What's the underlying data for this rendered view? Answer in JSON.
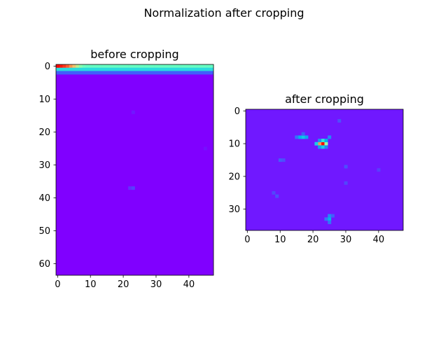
{
  "figure": {
    "suptitle": "Normalization after cropping"
  },
  "chart_data": [
    {
      "type": "heatmap",
      "title": "before cropping",
      "xlabel": "",
      "ylabel": "",
      "colormap": "rainbow",
      "shape": [
        64,
        48
      ],
      "xlim": [
        -0.5,
        47.5
      ],
      "ylim": [
        63.5,
        -0.5
      ],
      "xticks": [
        0,
        10,
        20,
        30,
        40
      ],
      "yticks": [
        0,
        10,
        20,
        30,
        40,
        50,
        60
      ],
      "background_value": 0.0,
      "rows": [
        {
          "row": 0,
          "values": [
            1.0,
            0.97,
            0.93,
            0.88,
            0.8,
            0.72,
            0.62,
            0.52,
            0.47,
            0.45,
            0.45,
            0.45,
            0.45,
            0.45,
            0.45,
            0.45,
            0.45,
            0.45,
            0.45,
            0.45,
            0.45,
            0.45,
            0.45,
            0.45,
            0.45,
            0.45,
            0.45,
            0.45,
            0.45,
            0.45,
            0.45,
            0.45,
            0.45,
            0.45,
            0.45,
            0.45,
            0.45,
            0.45,
            0.45,
            0.45,
            0.45,
            0.45,
            0.45,
            0.45,
            0.45,
            0.45,
            0.45,
            0.45
          ]
        },
        {
          "row": 1,
          "fill": 0.33
        },
        {
          "row": 2,
          "fill": 0.12
        }
      ],
      "spots": [
        {
          "row": 14,
          "col": 23,
          "value": 0.03
        },
        {
          "row": 37,
          "col": 22,
          "value": 0.06
        },
        {
          "row": 37,
          "col": 23,
          "value": 0.08
        },
        {
          "row": 25,
          "col": 45,
          "value": 0.02
        }
      ]
    },
    {
      "type": "heatmap",
      "title": "after cropping",
      "xlabel": "",
      "ylabel": "",
      "colormap": "rainbow",
      "shape": [
        37,
        48
      ],
      "xlim": [
        -0.5,
        47.5
      ],
      "ylim": [
        36.5,
        -0.5
      ],
      "xticks": [
        0,
        10,
        20,
        30,
        40
      ],
      "yticks": [
        0,
        10,
        20,
        30
      ],
      "background_value": 0.03,
      "spots": [
        {
          "row": 10,
          "col": 23,
          "value": 1.0
        },
        {
          "row": 10,
          "col": 22,
          "value": 0.8
        },
        {
          "row": 10,
          "col": 24,
          "value": 0.55
        },
        {
          "row": 9,
          "col": 23,
          "value": 0.35
        },
        {
          "row": 11,
          "col": 23,
          "value": 0.3
        },
        {
          "row": 9,
          "col": 24,
          "value": 0.25
        },
        {
          "row": 10,
          "col": 21,
          "value": 0.3
        },
        {
          "row": 11,
          "col": 22,
          "value": 0.22
        },
        {
          "row": 8,
          "col": 25,
          "value": 0.18
        },
        {
          "row": 9,
          "col": 22,
          "value": 0.2
        },
        {
          "row": 11,
          "col": 24,
          "value": 0.18
        },
        {
          "row": 8,
          "col": 16,
          "value": 0.25
        },
        {
          "row": 8,
          "col": 17,
          "value": 0.28
        },
        {
          "row": 8,
          "col": 18,
          "value": 0.22
        },
        {
          "row": 8,
          "col": 15,
          "value": 0.15
        },
        {
          "row": 7,
          "col": 17,
          "value": 0.12
        },
        {
          "row": 33,
          "col": 25,
          "value": 0.25
        },
        {
          "row": 32,
          "col": 25,
          "value": 0.18
        },
        {
          "row": 33,
          "col": 24,
          "value": 0.15
        },
        {
          "row": 34,
          "col": 25,
          "value": 0.15
        },
        {
          "row": 32,
          "col": 26,
          "value": 0.12
        },
        {
          "row": 15,
          "col": 10,
          "value": 0.12
        },
        {
          "row": 15,
          "col": 11,
          "value": 0.1
        },
        {
          "row": 26,
          "col": 9,
          "value": 0.1
        },
        {
          "row": 25,
          "col": 8,
          "value": 0.09
        },
        {
          "row": 17,
          "col": 30,
          "value": 0.1
        },
        {
          "row": 3,
          "col": 28,
          "value": 0.1
        },
        {
          "row": 22,
          "col": 30,
          "value": 0.09
        },
        {
          "row": 18,
          "col": 40,
          "value": 0.08
        }
      ]
    }
  ]
}
